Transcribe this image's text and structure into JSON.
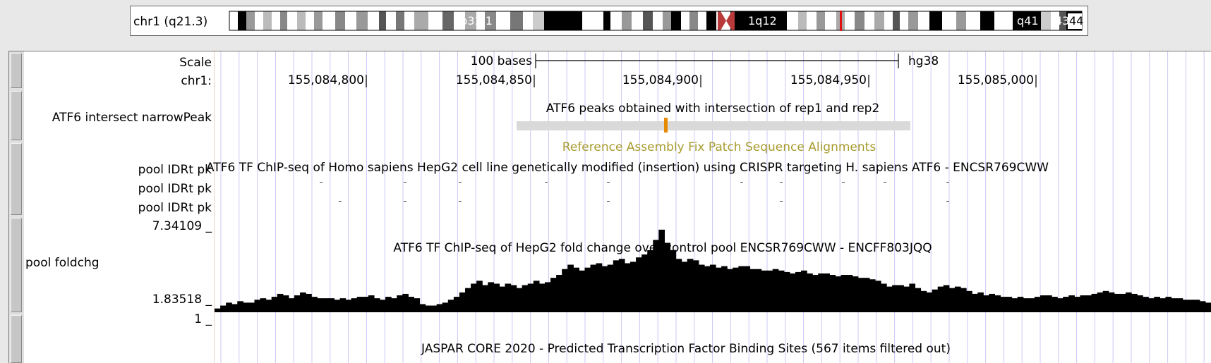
{
  "ideogram": {
    "label": "chr1 (q21.3)",
    "bands": [
      "1p31.1",
      "1q12",
      "q41",
      "43",
      "44"
    ]
  },
  "labels": {
    "scale": "Scale",
    "chr": "chr1:",
    "narrowpeak": "ATF6 intersect narrowPeak",
    "pool1": "pool IDRt pk",
    "pool2": "pool IDRt pk",
    "pool3": "pool IDRt pk",
    "max": "7.34109 _",
    "foldchg": "pool foldchg",
    "min": "1.83518 _",
    "jaspar_val": "1 _"
  },
  "ruler": {
    "scale_text": "100 bases",
    "assembly": "hg38",
    "positions": [
      "155,084,800",
      "155,084,850",
      "155,084,900",
      "155,084,950",
      "155,085,000"
    ]
  },
  "tracks": {
    "peaks_title": "ATF6 peaks obtained with intersection of rep1 and rep2",
    "fix_patch": "Reference Assembly Fix Patch Sequence Alignments",
    "chipseq_title": "ATF6 TF ChIP-seq of Homo sapiens HepG2 cell line genetically modified (insertion) using CRISPR targeting H. sapiens ATF6 - ENCSR769CWW",
    "foldchange_title": "ATF6 TF ChIP-seq of HepG2 fold change over control pool ENCSR769CWW - ENCFF803JQQ",
    "jaspar_title": "JASPAR CORE 2020 - Predicted Transcription Factor Binding Sites (567 items filtered out)"
  },
  "signal": {
    "ymin": 1.83518,
    "ymax": 7.34109,
    "values": [
      1.9,
      2.1,
      2.3,
      2.2,
      2.4,
      2.3,
      2.3,
      2.5,
      2.6,
      2.5,
      2.7,
      2.9,
      2.8,
      2.6,
      2.8,
      3.0,
      2.9,
      2.7,
      2.6,
      2.6,
      2.6,
      2.5,
      2.6,
      2.5,
      2.6,
      2.7,
      2.7,
      2.8,
      2.6,
      2.5,
      2.7,
      2.6,
      2.8,
      2.9,
      2.7,
      2.6,
      2.2,
      2.1,
      2.1,
      2.2,
      2.3,
      2.5,
      2.7,
      3.0,
      3.3,
      3.6,
      3.8,
      3.5,
      3.7,
      3.6,
      3.4,
      3.6,
      3.5,
      3.3,
      3.5,
      3.6,
      3.8,
      3.6,
      3.7,
      4.0,
      4.2,
      4.6,
      4.9,
      4.7,
      4.5,
      4.7,
      4.9,
      5.0,
      4.8,
      4.9,
      5.2,
      5.3,
      5.0,
      5.1,
      5.4,
      5.6,
      5.9,
      6.6,
      7.3,
      6.4,
      5.9,
      5.3,
      5.1,
      5.3,
      5.2,
      4.9,
      4.8,
      4.9,
      4.7,
      4.8,
      4.6,
      4.7,
      4.8,
      4.8,
      4.6,
      4.6,
      4.5,
      4.5,
      4.6,
      4.5,
      4.4,
      4.3,
      4.4,
      4.5,
      4.3,
      4.2,
      4.3,
      4.3,
      4.2,
      4.1,
      4.2,
      4.2,
      4.1,
      4.0,
      4.0,
      3.9,
      3.8,
      3.6,
      3.4,
      3.5,
      3.5,
      3.4,
      3.6,
      3.3,
      3.1,
      3.0,
      3.2,
      3.4,
      3.5,
      3.3,
      3.4,
      3.3,
      3.1,
      2.9,
      3.0,
      2.8,
      2.9,
      2.8,
      2.7,
      2.7,
      2.6,
      2.7,
      2.6,
      2.6,
      2.7,
      2.8,
      2.8,
      2.7,
      2.6,
      2.7,
      2.8,
      2.7,
      2.8,
      2.8,
      2.9,
      3.0,
      3.1,
      3.0,
      2.9,
      2.9,
      3.0,
      2.9,
      2.8,
      2.7,
      2.6,
      2.7,
      2.6,
      2.7,
      2.6,
      2.6,
      2.5,
      2.5,
      2.5,
      2.4,
      2.3
    ]
  },
  "colors": {
    "fix_patch": "#a89b2e",
    "peak_mark": "#e68a00",
    "peak_bar": "#d9d9d9",
    "centromere": "#b83a3a",
    "position_marker": "#e01010",
    "grid": "#c9c9f5"
  }
}
